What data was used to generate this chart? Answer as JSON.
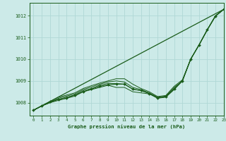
{
  "title": "Graphe pression niveau de la mer (hPa)",
  "bg_color": "#cceae8",
  "grid_color": "#b0d8d5",
  "line_color": "#1a5c1a",
  "xlim": [
    -0.5,
    23
  ],
  "ylim": [
    1007.4,
    1012.6
  ],
  "yticks": [
    1008,
    1009,
    1010,
    1011,
    1012
  ],
  "xticks": [
    0,
    1,
    2,
    3,
    4,
    5,
    6,
    7,
    8,
    9,
    10,
    11,
    12,
    13,
    14,
    15,
    16,
    17,
    18,
    19,
    20,
    21,
    22,
    23
  ],
  "straight_line": [
    1007.65,
    1012.3
  ],
  "series": [
    [
      1007.65,
      1007.85,
      1008.0,
      1008.1,
      1008.2,
      1008.3,
      1008.5,
      1008.6,
      1008.7,
      1008.8,
      1008.7,
      1008.7,
      1008.5,
      1008.45,
      1008.4,
      1008.2,
      1008.25,
      1008.6,
      1009.0,
      1010.0,
      1010.65,
      1011.35,
      1012.0,
      1012.3
    ],
    [
      1007.65,
      1007.85,
      1008.0,
      1008.15,
      1008.25,
      1008.35,
      1008.55,
      1008.65,
      1008.8,
      1008.88,
      1008.88,
      1008.85,
      1008.62,
      1008.55,
      1008.42,
      1008.22,
      1008.27,
      1008.65,
      1009.0,
      1010.0,
      1010.65,
      1011.35,
      1012.0,
      1012.3
    ],
    [
      1007.65,
      1007.85,
      1008.0,
      1008.2,
      1008.3,
      1008.4,
      1008.6,
      1008.72,
      1008.85,
      1008.95,
      1009.0,
      1008.95,
      1008.7,
      1008.6,
      1008.45,
      1008.25,
      1008.3,
      1008.7,
      1009.0,
      1010.0,
      1010.65,
      1011.35,
      1012.0,
      1012.3
    ],
    [
      1007.65,
      1007.85,
      1008.05,
      1008.25,
      1008.35,
      1008.45,
      1008.65,
      1008.78,
      1008.9,
      1009.0,
      1009.1,
      1009.1,
      1008.85,
      1008.65,
      1008.5,
      1008.28,
      1008.33,
      1008.75,
      1009.05,
      1010.0,
      1010.65,
      1011.35,
      1012.0,
      1012.3
    ]
  ],
  "marker_series": [
    1007.65,
    1007.85,
    1008.05,
    1008.15,
    1008.2,
    1008.35,
    1008.5,
    1008.62,
    1008.75,
    1008.82,
    1008.85,
    1008.85,
    1008.62,
    1008.56,
    1008.42,
    1008.22,
    1008.27,
    1008.62,
    1009.0,
    1010.0,
    1010.65,
    1011.35,
    1011.98,
    1012.3
  ]
}
